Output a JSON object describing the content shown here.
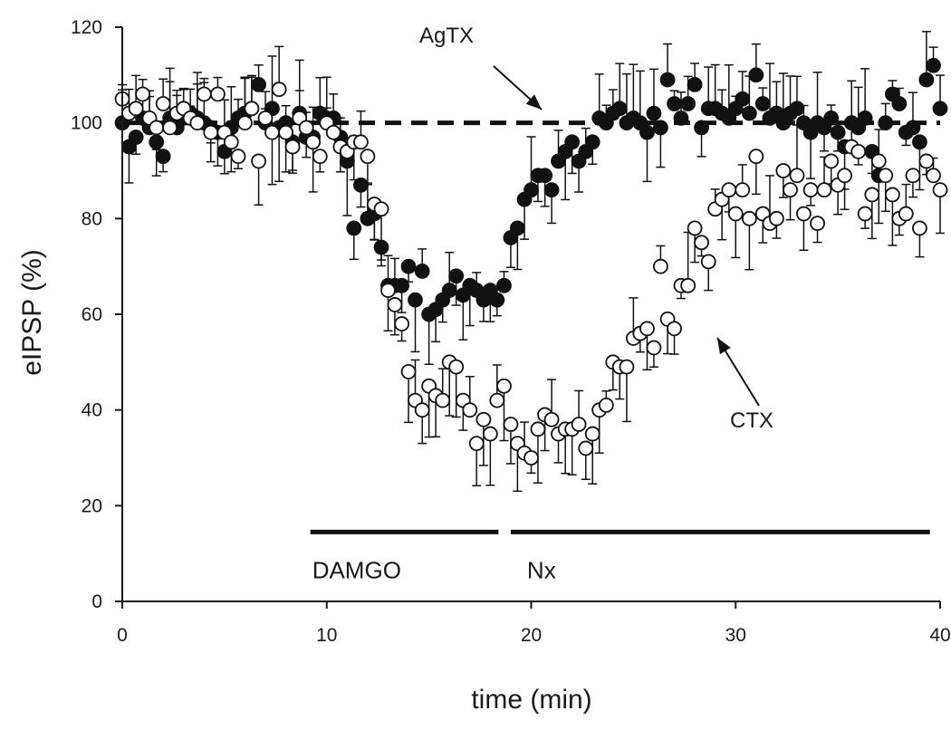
{
  "chart_data": {
    "type": "scatter",
    "title": "",
    "xlabel": "time (min)",
    "ylabel": "eIPSP (%)",
    "xlim": [
      0,
      40
    ],
    "ylim": [
      0,
      120
    ],
    "x_ticks": [
      "0",
      "10",
      "20",
      "30",
      "40"
    ],
    "y_ticks": [
      "0",
      "20",
      "40",
      "60",
      "80",
      "100",
      "120"
    ],
    "grid": false,
    "baseline": {
      "y": 100,
      "x": [
        0,
        40
      ],
      "style": "dashed"
    },
    "drug_bars": [
      {
        "label": "DAMGO",
        "start": 9.2,
        "end": 18.4
      },
      {
        "label": "Nx",
        "start": 19.0,
        "end": 39.5
      }
    ],
    "annotations": [
      {
        "text": "AgTX",
        "points_to": "AgTX series"
      },
      {
        "text": "CTX",
        "points_to": "CTX series"
      }
    ],
    "series": [
      {
        "name": "AgTX",
        "marker": "filled-circle",
        "points": [
          [
            0.0,
            100
          ],
          [
            0.33,
            95
          ],
          [
            0.67,
            97
          ],
          [
            1.0,
            101
          ],
          [
            1.33,
            99
          ],
          [
            1.67,
            96
          ],
          [
            2.0,
            93
          ],
          [
            2.33,
            101
          ],
          [
            2.67,
            99
          ],
          [
            3.0,
            101
          ],
          [
            3.33,
            102
          ],
          [
            3.67,
            101
          ],
          [
            4.0,
            100
          ],
          [
            4.33,
            99
          ],
          [
            4.67,
            98
          ],
          [
            5.0,
            94
          ],
          [
            5.33,
            99
          ],
          [
            5.67,
            101
          ],
          [
            6.0,
            102
          ],
          [
            6.33,
            103
          ],
          [
            6.67,
            108
          ],
          [
            7.0,
            100
          ],
          [
            7.33,
            103
          ],
          [
            7.67,
            99
          ],
          [
            8.0,
            100
          ],
          [
            8.33,
            96
          ],
          [
            8.67,
            102
          ],
          [
            9.0,
            97
          ],
          [
            9.33,
            97
          ],
          [
            9.67,
            102
          ],
          [
            10.0,
            101
          ],
          [
            10.33,
            101
          ],
          [
            10.67,
            97
          ],
          [
            11.0,
            92
          ],
          [
            11.33,
            78
          ],
          [
            11.67,
            87
          ],
          [
            12.0,
            80
          ],
          [
            12.33,
            81
          ],
          [
            12.67,
            74
          ],
          [
            13.0,
            66
          ],
          [
            13.33,
            66
          ],
          [
            13.67,
            66
          ],
          [
            14.0,
            70
          ],
          [
            14.33,
            63
          ],
          [
            14.67,
            69
          ],
          [
            15.0,
            60
          ],
          [
            15.33,
            61
          ],
          [
            15.67,
            63
          ],
          [
            16.0,
            65
          ],
          [
            16.33,
            68
          ],
          [
            16.67,
            64
          ],
          [
            17.0,
            66
          ],
          [
            17.33,
            65
          ],
          [
            17.67,
            63
          ],
          [
            18.0,
            65
          ],
          [
            18.33,
            63
          ],
          [
            18.67,
            66
          ],
          [
            19.0,
            76
          ],
          [
            19.33,
            78
          ],
          [
            19.67,
            84
          ],
          [
            20.0,
            86
          ],
          [
            20.33,
            89
          ],
          [
            20.67,
            89
          ],
          [
            21.0,
            86
          ],
          [
            21.33,
            92
          ],
          [
            21.67,
            94
          ],
          [
            22.0,
            96
          ],
          [
            22.33,
            92
          ],
          [
            22.67,
            94
          ],
          [
            23.0,
            96
          ],
          [
            23.33,
            101
          ],
          [
            23.67,
            100
          ],
          [
            24.0,
            102
          ],
          [
            24.33,
            103
          ],
          [
            24.67,
            100
          ],
          [
            25.0,
            101
          ],
          [
            25.33,
            100
          ],
          [
            25.67,
            98
          ],
          [
            26.0,
            102
          ],
          [
            26.33,
            99
          ],
          [
            26.67,
            109
          ],
          [
            27.0,
            104
          ],
          [
            27.33,
            101
          ],
          [
            27.67,
            104
          ],
          [
            28.0,
            108
          ],
          [
            28.33,
            99
          ],
          [
            28.67,
            103
          ],
          [
            29.0,
            103
          ],
          [
            29.33,
            102
          ],
          [
            29.67,
            101
          ],
          [
            30.0,
            103
          ],
          [
            30.33,
            105
          ],
          [
            30.67,
            102
          ],
          [
            31.0,
            110
          ],
          [
            31.33,
            104
          ],
          [
            31.67,
            101
          ],
          [
            32.0,
            102
          ],
          [
            32.33,
            100
          ],
          [
            32.67,
            102
          ],
          [
            33.0,
            103
          ],
          [
            33.33,
            100
          ],
          [
            33.67,
            98
          ],
          [
            34.0,
            100
          ],
          [
            34.33,
            99
          ],
          [
            34.67,
            101
          ],
          [
            35.0,
            98
          ],
          [
            35.33,
            95
          ],
          [
            35.67,
            100
          ],
          [
            36.0,
            99
          ],
          [
            36.33,
            101
          ],
          [
            36.67,
            94
          ],
          [
            37.0,
            89
          ],
          [
            37.33,
            100
          ],
          [
            37.67,
            106
          ],
          [
            38.0,
            104
          ],
          [
            38.33,
            98
          ],
          [
            38.67,
            99
          ],
          [
            39.0,
            96
          ],
          [
            39.33,
            109
          ],
          [
            39.67,
            112
          ],
          [
            40.0,
            103
          ]
        ]
      },
      {
        "name": "CTX",
        "marker": "open-circle",
        "points": [
          [
            0.0,
            105
          ],
          [
            0.33,
            102
          ],
          [
            0.67,
            103
          ],
          [
            1.0,
            106
          ],
          [
            1.33,
            101
          ],
          [
            1.67,
            99
          ],
          [
            2.0,
            104
          ],
          [
            2.33,
            99
          ],
          [
            2.67,
            102
          ],
          [
            3.0,
            103
          ],
          [
            3.33,
            101
          ],
          [
            3.67,
            100
          ],
          [
            4.0,
            106
          ],
          [
            4.33,
            98
          ],
          [
            4.67,
            106
          ],
          [
            5.0,
            98
          ],
          [
            5.33,
            96
          ],
          [
            5.67,
            93
          ],
          [
            6.0,
            100
          ],
          [
            6.33,
            103
          ],
          [
            6.67,
            92
          ],
          [
            7.0,
            101
          ],
          [
            7.33,
            98
          ],
          [
            7.67,
            107
          ],
          [
            8.0,
            98
          ],
          [
            8.33,
            95
          ],
          [
            8.67,
            101
          ],
          [
            9.0,
            99
          ],
          [
            9.33,
            96
          ],
          [
            9.67,
            93
          ],
          [
            10.0,
            100
          ],
          [
            10.33,
            98
          ],
          [
            10.67,
            95
          ],
          [
            11.0,
            94
          ],
          [
            11.33,
            96
          ],
          [
            11.67,
            96
          ],
          [
            12.0,
            93
          ],
          [
            12.33,
            83
          ],
          [
            12.67,
            82
          ],
          [
            13.0,
            65
          ],
          [
            13.33,
            62
          ],
          [
            13.67,
            58
          ],
          [
            14.0,
            48
          ],
          [
            14.33,
            42
          ],
          [
            14.67,
            40
          ],
          [
            15.0,
            45
          ],
          [
            15.33,
            43
          ],
          [
            15.67,
            42
          ],
          [
            16.0,
            50
          ],
          [
            16.33,
            49
          ],
          [
            16.67,
            42
          ],
          [
            17.0,
            40
          ],
          [
            17.33,
            33
          ],
          [
            17.67,
            38
          ],
          [
            18.0,
            35
          ],
          [
            18.33,
            42
          ],
          [
            18.67,
            45
          ],
          [
            19.0,
            37
          ],
          [
            19.33,
            33
          ],
          [
            19.67,
            31
          ],
          [
            20.0,
            30
          ],
          [
            20.33,
            36
          ],
          [
            20.67,
            39
          ],
          [
            21.0,
            38
          ],
          [
            21.33,
            35
          ],
          [
            21.67,
            36
          ],
          [
            22.0,
            36
          ],
          [
            22.33,
            37
          ],
          [
            22.67,
            32
          ],
          [
            23.0,
            35
          ],
          [
            23.33,
            40
          ],
          [
            23.67,
            41
          ],
          [
            24.0,
            50
          ],
          [
            24.33,
            49
          ],
          [
            24.67,
            49
          ],
          [
            25.0,
            55
          ],
          [
            25.33,
            56
          ],
          [
            25.67,
            57
          ],
          [
            26.0,
            53
          ],
          [
            26.33,
            70
          ],
          [
            26.67,
            59
          ],
          [
            27.0,
            57
          ],
          [
            27.33,
            66
          ],
          [
            27.67,
            66
          ],
          [
            28.0,
            78
          ],
          [
            28.33,
            75
          ],
          [
            28.67,
            71
          ],
          [
            29.0,
            82
          ],
          [
            29.33,
            84
          ],
          [
            29.67,
            86
          ],
          [
            30.0,
            81
          ],
          [
            30.33,
            86
          ],
          [
            30.67,
            80
          ],
          [
            31.0,
            93
          ],
          [
            31.33,
            81
          ],
          [
            31.67,
            79
          ],
          [
            32.0,
            80
          ],
          [
            32.33,
            90
          ],
          [
            32.67,
            86
          ],
          [
            33.0,
            89
          ],
          [
            33.33,
            81
          ],
          [
            33.67,
            86
          ],
          [
            34.0,
            79
          ],
          [
            34.33,
            86
          ],
          [
            34.67,
            92
          ],
          [
            35.0,
            87
          ],
          [
            35.33,
            89
          ],
          [
            35.67,
            95
          ],
          [
            36.0,
            94
          ],
          [
            36.33,
            81
          ],
          [
            36.67,
            85
          ],
          [
            37.0,
            92
          ],
          [
            37.33,
            89
          ],
          [
            37.67,
            85
          ],
          [
            38.0,
            80
          ],
          [
            38.33,
            81
          ],
          [
            38.67,
            89
          ],
          [
            39.0,
            78
          ],
          [
            39.33,
            92
          ],
          [
            39.67,
            89
          ],
          [
            40.0,
            86
          ]
        ]
      }
    ]
  }
}
